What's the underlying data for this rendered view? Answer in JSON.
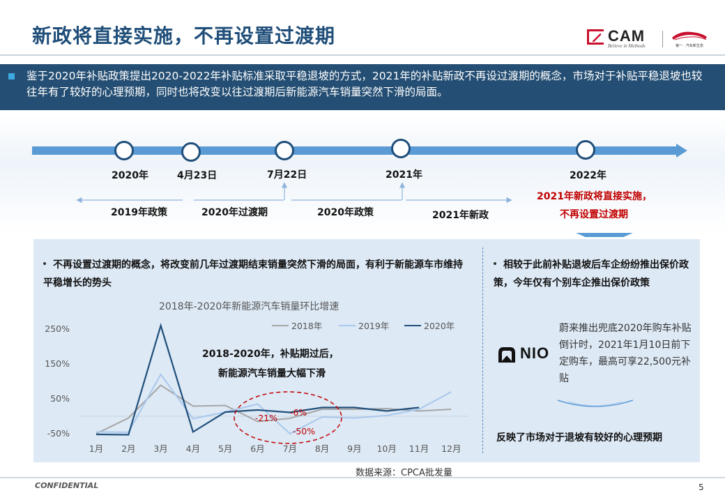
{
  "title": "新政将直接实施，不再设置过渡期",
  "logo": {
    "name": "CAM",
    "tagline": "Believe in Methods",
    "partner_tagline": "第一 · 汽车新生态"
  },
  "banner": {
    "text": "鉴于2020年补贴政策提出2020-2022年补贴标准采取平稳退坡的方式，2021年的补贴新政不再设过渡期的概念，市场对于补贴平稳退坡也较往年有了较好的心理预期，同时也将改变以往过渡期后新能源汽车销量突然下滑的局面。"
  },
  "timeline": {
    "milestones": [
      "2020年",
      "4月23日",
      "7月22日",
      "2021年",
      "2022年"
    ],
    "periods": [
      "2019年政策",
      "2020年过渡期",
      "2020年政策",
      "2021年新政"
    ],
    "callout_line1": "2021年新政将直接实施，",
    "callout_line2": "不再设置过渡期",
    "colors": {
      "line": "#5b9bd5",
      "node_border": "#1f4e79",
      "callout": "#c00000"
    }
  },
  "left_panel": {
    "bullet": "不再设置过渡期的概念，将改变前几年过渡期结束销量突然下滑的局面，有利于新能源车市维持平稳增长的势头",
    "annotation_line1": "2018-2020年，补贴期过后，",
    "annotation_line2": "新能源汽车销量大幅下滑"
  },
  "chart_data": {
    "type": "line",
    "title": "2018年-2020年新能源汽车销量环比增速",
    "categories": [
      "1月",
      "2月",
      "3月",
      "4月",
      "5月",
      "6月",
      "7月",
      "8月",
      "9月",
      "10月",
      "11月",
      "12月"
    ],
    "y_ticks": [
      "250%",
      "150%",
      "50%",
      "-50%"
    ],
    "ylim": [
      -50,
      250
    ],
    "series": [
      {
        "name": "2018年",
        "color": "#a6a6a6",
        "values": [
          -50,
          -5,
          89,
          29,
          31,
          -15,
          -6,
          20,
          20,
          22,
          15,
          20
        ]
      },
      {
        "name": "2019年",
        "color": "#a9c8ec",
        "values": [
          -45,
          -46,
          120,
          -7,
          12,
          35,
          -50,
          -2,
          -5,
          2,
          20,
          70
        ]
      },
      {
        "name": "2020年",
        "color": "#1f4e79",
        "values": [
          -52,
          -53,
          260,
          -45,
          12,
          18,
          11,
          25,
          25,
          15,
          25,
          null
        ]
      }
    ],
    "annotations": [
      "-21%",
      "-6%",
      "-50%"
    ],
    "highlight_color": "#c00000",
    "grid": false
  },
  "right_panel": {
    "bullet": "相较于此前补贴退坡后车企纷纷推出保价政策，今年仅有个别车企推出保价政策",
    "nio_logo": "NIO",
    "nio_desc": "蔚来推出兜底2020年购车补贴倒计时，2021年1月10日前下定购车，最高可享22,500元补贴",
    "conclusion": "反映了市场对于退坡有较好的心理预期"
  },
  "footer": {
    "source": "数据来源：CPCA批发量",
    "confidential": "CONFIDENTIAL",
    "page": "5"
  }
}
